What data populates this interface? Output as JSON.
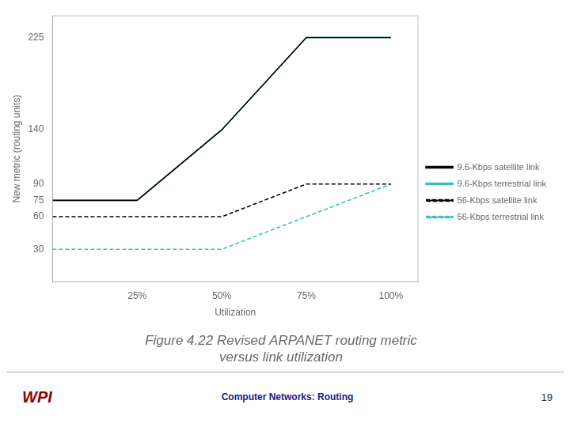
{
  "chart_data": {
    "type": "line",
    "title": [
      "Figure 4.22 Revised ARPANET routing metric",
      "versus link utilization"
    ],
    "subtitle": "Computer Networks: Routing",
    "annotations": [
      "WPI",
      "19"
    ],
    "xlabel": "Utilization",
    "ylabel": "New metric (routing units)",
    "xlim": [
      0,
      108
    ],
    "ylim": [
      0,
      245
    ],
    "xticks": [
      {
        "value": 25,
        "label": "25%"
      },
      {
        "value": 50,
        "label": "50%"
      },
      {
        "value": 75,
        "label": "75%"
      },
      {
        "value": 100,
        "label": "100%"
      }
    ],
    "yticks": [
      30,
      60,
      75,
      90,
      140,
      225
    ],
    "grid": false,
    "legend": "right",
    "series": [
      {
        "name": "9.6-Kbps satellite link",
        "color": "#000000",
        "line_style": "solid",
        "x": [
          0,
          25,
          50,
          75,
          100
        ],
        "values": [
          75,
          75,
          140,
          225,
          225
        ]
      },
      {
        "name": "9.6-Kbps terrestrial link",
        "color": "#3bbfbf",
        "line_style": "solid",
        "x": [
          0,
          25,
          50,
          75,
          100
        ],
        "values": [
          75,
          75,
          140,
          225,
          225
        ]
      },
      {
        "name": "56-Kbps satellite link",
        "color": "#000000",
        "line_style": "dashed",
        "x": [
          0,
          50,
          75,
          100
        ],
        "values": [
          60,
          60,
          90,
          90
        ]
      },
      {
        "name": "56-Kbps terrestrial link",
        "color": "#3bbfbf",
        "line_style": "dashed",
        "x": [
          0,
          50,
          75,
          100
        ],
        "values": [
          30,
          30,
          60,
          90
        ]
      }
    ]
  }
}
